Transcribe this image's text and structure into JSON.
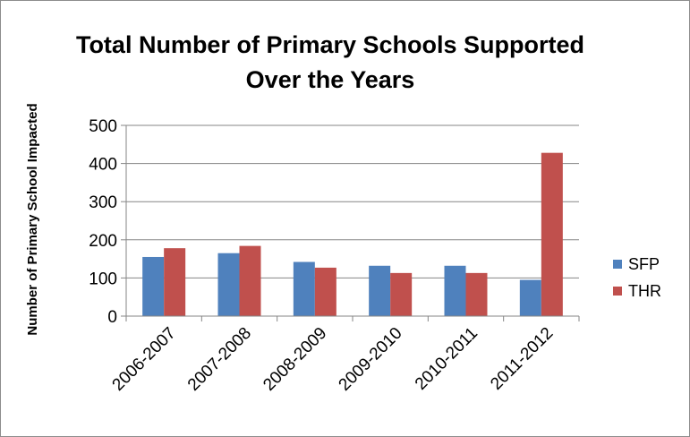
{
  "chart_data": {
    "type": "bar",
    "title_lines": [
      "Total Number of Primary Schools Supported",
      "Over the Years"
    ],
    "xlabel": "",
    "ylabel": "Number of Primary School Impacted",
    "categories": [
      "2006-2007",
      "2007-2008",
      "2008-2009",
      "2009-2010",
      "2010-2011",
      "2011-2012"
    ],
    "series": [
      {
        "name": "SFP",
        "color": "#4F81BD",
        "values": [
          155,
          165,
          142,
          132,
          132,
          95
        ]
      },
      {
        "name": "THR",
        "color": "#C0504D",
        "values": [
          178,
          184,
          127,
          113,
          113,
          428
        ]
      }
    ],
    "ylim": [
      0,
      500
    ],
    "yticks": [
      0,
      100,
      200,
      300,
      400,
      500
    ],
    "grid": true,
    "legend_position": "right"
  }
}
